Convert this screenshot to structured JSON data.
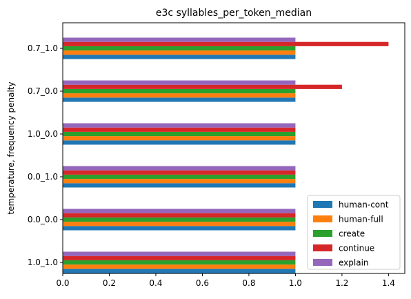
{
  "chart_data": {
    "type": "bar",
    "orientation": "horizontal",
    "title": "e3c syllables_per_token_median",
    "xlabel": "",
    "ylabel": "temperature, frequency penalty",
    "categories": [
      "1.0_1.0",
      "0.0_0.0",
      "0.0_1.0",
      "1.0_0.0",
      "0.7_0.0",
      "0.7_1.0"
    ],
    "series": [
      {
        "name": "human-cont",
        "color": "#1f77b4",
        "values": [
          1,
          1,
          1,
          1,
          1,
          1
        ]
      },
      {
        "name": "human-full",
        "color": "#ff7f0e",
        "values": [
          1,
          1,
          1,
          1,
          1,
          1
        ]
      },
      {
        "name": "create",
        "color": "#2ca02c",
        "values": [
          1,
          1,
          1,
          1,
          1,
          1
        ]
      },
      {
        "name": "continue",
        "color": "#d62728",
        "values": [
          1,
          1,
          1,
          1,
          1.2,
          1.4
        ]
      },
      {
        "name": "explain",
        "color": "#9467bd",
        "values": [
          1,
          1,
          1,
          1,
          1,
          1
        ]
      }
    ],
    "xlim": [
      0,
      1.47
    ],
    "xticks": [
      "0.0",
      "0.2",
      "0.4",
      "0.6",
      "0.8",
      "1.0",
      "1.2",
      "1.4"
    ],
    "grid": false,
    "legend_position": "lower-right"
  }
}
